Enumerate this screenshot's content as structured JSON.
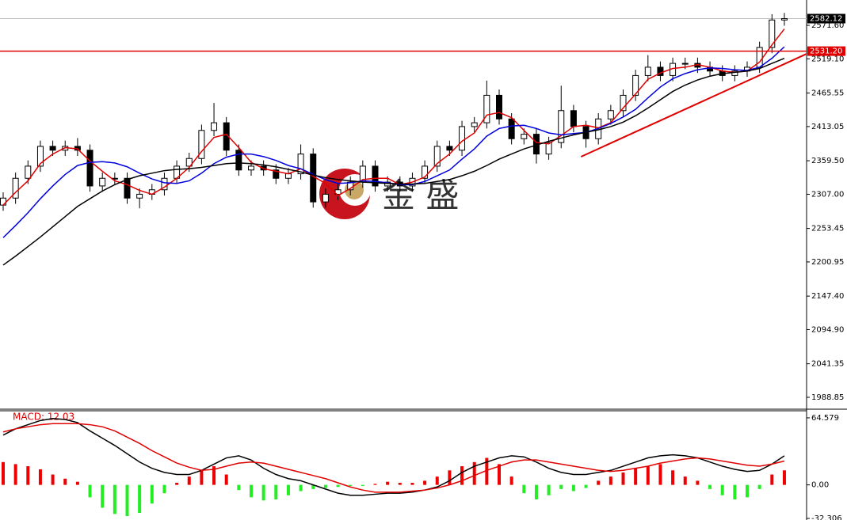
{
  "chart_data": [
    {
      "type": "candlestick",
      "open": [
        2290,
        2301,
        2332,
        2351,
        2382,
        2376,
        2382,
        2376,
        2320,
        2332,
        2332,
        2301,
        2307,
        2314,
        2332,
        2351,
        2363,
        2407,
        2419,
        2376,
        2345,
        2351,
        2345,
        2332,
        2339,
        2370,
        2295,
        2307,
        2314,
        2326,
        2351,
        2320,
        2326,
        2320,
        2332,
        2351,
        2382,
        2376,
        2413,
        2419,
        2462,
        2425,
        2394,
        2401,
        2370,
        2388,
        2438,
        2413,
        2394,
        2425,
        2438,
        2462,
        2493,
        2506,
        2493,
        2512,
        2512,
        2506,
        2500,
        2493,
        2500,
        2506,
        2537,
        2580
      ],
      "high": [
        2310,
        2341,
        2360,
        2391,
        2391,
        2391,
        2395,
        2385,
        2341,
        2341,
        2341,
        2316,
        2323,
        2341,
        2360,
        2372,
        2416,
        2450,
        2428,
        2385,
        2360,
        2360,
        2354,
        2348,
        2385,
        2379,
        2316,
        2323,
        2335,
        2360,
        2360,
        2335,
        2335,
        2341,
        2360,
        2391,
        2391,
        2422,
        2428,
        2485,
        2471,
        2434,
        2410,
        2410,
        2397,
        2477,
        2447,
        2422,
        2434,
        2447,
        2471,
        2502,
        2525,
        2515,
        2521,
        2521,
        2521,
        2515,
        2509,
        2509,
        2515,
        2546,
        2589,
        2591
      ],
      "low": [
        2281,
        2292,
        2323,
        2342,
        2367,
        2367,
        2367,
        2311,
        2311,
        2323,
        2292,
        2285,
        2298,
        2305,
        2323,
        2342,
        2354,
        2398,
        2367,
        2336,
        2336,
        2336,
        2323,
        2323,
        2330,
        2286,
        2286,
        2298,
        2305,
        2317,
        2311,
        2311,
        2311,
        2311,
        2323,
        2342,
        2367,
        2367,
        2404,
        2410,
        2416,
        2385,
        2385,
        2355,
        2361,
        2379,
        2404,
        2380,
        2385,
        2416,
        2429,
        2453,
        2484,
        2484,
        2484,
        2503,
        2497,
        2491,
        2484,
        2484,
        2491,
        2497,
        2528,
        2571
      ],
      "close": [
        2301,
        2332,
        2351,
        2382,
        2376,
        2382,
        2376,
        2320,
        2332,
        2332,
        2301,
        2307,
        2314,
        2332,
        2351,
        2363,
        2407,
        2419,
        2376,
        2345,
        2351,
        2345,
        2332,
        2339,
        2370,
        2295,
        2307,
        2314,
        2326,
        2351,
        2320,
        2326,
        2320,
        2332,
        2351,
        2382,
        2376,
        2413,
        2419,
        2462,
        2425,
        2394,
        2401,
        2370,
        2388,
        2438,
        2413,
        2394,
        2425,
        2438,
        2462,
        2493,
        2506,
        2493,
        2512,
        2512,
        2506,
        2500,
        2493,
        2500,
        2506,
        2537,
        2580,
        2582.12
      ],
      "up_color": "#ffffff",
      "down_color": "#000000",
      "series": [
        {
          "color": "#e00000",
          "values": [
            2290,
            2310,
            2328,
            2355,
            2370,
            2380,
            2378,
            2359,
            2343,
            2328,
            2322,
            2313,
            2307,
            2318,
            2332,
            2349,
            2374,
            2396,
            2401,
            2380,
            2357,
            2347,
            2343,
            2339,
            2347,
            2335,
            2324,
            2305,
            2316,
            2330,
            2332,
            2332,
            2322,
            2326,
            2334,
            2355,
            2370,
            2390,
            2403,
            2431,
            2435,
            2427,
            2407,
            2388,
            2386,
            2399,
            2413,
            2415,
            2411,
            2419,
            2442,
            2464,
            2487,
            2497,
            2504,
            2506,
            2510,
            2506,
            2500,
            2498,
            2500,
            2514,
            2541,
            2566
          ]
        },
        {
          "color": "#0000dd",
          "values": [
            2239,
            2258,
            2278,
            2300,
            2320,
            2338,
            2352,
            2357,
            2358,
            2356,
            2350,
            2340,
            2331,
            2325,
            2324,
            2328,
            2340,
            2355,
            2365,
            2370,
            2370,
            2366,
            2360,
            2352,
            2347,
            2338,
            2330,
            2324,
            2325,
            2328,
            2327,
            2325,
            2322,
            2322,
            2327,
            2336,
            2345,
            2362,
            2378,
            2398,
            2410,
            2414,
            2415,
            2410,
            2403,
            2400,
            2402,
            2404,
            2410,
            2418,
            2428,
            2440,
            2458,
            2475,
            2488,
            2496,
            2502,
            2505,
            2504,
            2502,
            2501,
            2506,
            2520,
            2538
          ]
        },
        {
          "color": "#000000",
          "values": [
            2196,
            2210,
            2225,
            2240,
            2256,
            2272,
            2288,
            2300,
            2312,
            2322,
            2330,
            2336,
            2340,
            2344,
            2346,
            2347,
            2349,
            2352,
            2355,
            2356,
            2355,
            2353,
            2350,
            2346,
            2342,
            2337,
            2333,
            2330,
            2328,
            2326,
            2325,
            2324,
            2323,
            2323,
            2324,
            2327,
            2330,
            2336,
            2343,
            2352,
            2362,
            2370,
            2378,
            2384,
            2390,
            2395,
            2400,
            2404,
            2408,
            2413,
            2420,
            2430,
            2442,
            2455,
            2468,
            2478,
            2486,
            2492,
            2496,
            2498,
            2500,
            2504,
            2512,
            2520
          ]
        }
      ],
      "trendline": {
        "x": [
          46.6,
          64.8
        ],
        "y": [
          2365.8,
          2527
        ],
        "color": "#e00000"
      },
      "hline": {
        "value": 2531.2,
        "label": "2531.20",
        "color": "#e00000"
      },
      "last_price": {
        "value": 2582.12,
        "label": "2582.12"
      },
      "watermark": "金 盛",
      "ylim": [
        1970.25,
        2611.3
      ],
      "yticks": [
        {
          "value": 2571.6,
          "label": "2571.60"
        },
        {
          "value": 2519.1,
          "label": "2519.10"
        },
        2465.55,
        2413.05,
        {
          "value": 2359.5,
          "label": "2359.50"
        },
        {
          "value": 2307,
          "label": "2307.00"
        },
        2253.45,
        2200.95,
        {
          "value": 2147.4,
          "label": "2147.40"
        },
        {
          "value": 2094.9,
          "label": "2094.90"
        },
        2041.35,
        1988.85
      ]
    },
    {
      "type": "macd",
      "label": "MACD: 12.03",
      "histogram": [
        22,
        20,
        18,
        15,
        10,
        6,
        3,
        -12,
        -22,
        -28,
        -30,
        -27,
        -18,
        -8,
        2,
        8,
        14,
        18,
        10,
        -5,
        -12,
        -15,
        -14,
        -10,
        -6,
        -4,
        -3,
        -2,
        -1,
        -1,
        1,
        3,
        2,
        2,
        4,
        8,
        14,
        18,
        22,
        26,
        20,
        8,
        -8,
        -14,
        -10,
        -4,
        -6,
        -3,
        4,
        8,
        12,
        16,
        18,
        20,
        14,
        8,
        4,
        -4,
        -10,
        -14,
        -12,
        -4,
        10,
        14
      ],
      "positive_color": "#ee0000",
      "negative_color": "#22ee22",
      "series": [
        {
          "color": "#000000",
          "values": [
            48,
            54,
            58,
            62,
            64,
            63,
            60,
            52,
            45,
            38,
            30,
            22,
            16,
            12,
            10,
            10,
            14,
            20,
            26,
            28,
            24,
            16,
            10,
            6,
            4,
            0,
            -4,
            -8,
            -10,
            -10,
            -9,
            -8,
            -8,
            -7,
            -5,
            -2,
            4,
            12,
            18,
            22,
            26,
            28,
            27,
            22,
            16,
            12,
            10,
            10,
            12,
            14,
            18,
            22,
            26,
            28,
            29,
            28,
            26,
            22,
            18,
            15,
            13,
            14,
            20,
            28
          ]
        },
        {
          "color": "#e00000",
          "values": [
            51,
            54,
            56,
            58,
            59,
            59,
            59,
            58,
            56,
            52,
            46,
            40,
            33,
            27,
            21,
            17,
            14,
            15,
            18,
            21,
            22,
            21,
            18,
            15,
            12,
            9,
            6,
            2,
            -2,
            -5,
            -7,
            -7,
            -7,
            -6,
            -5,
            -3,
            0,
            4,
            9,
            14,
            18,
            22,
            24,
            24,
            22,
            20,
            18,
            16,
            14,
            13,
            14,
            16,
            18,
            21,
            23,
            25,
            26,
            25,
            23,
            21,
            19,
            18,
            20,
            23
          ]
        }
      ],
      "ylim": [
        -32.306,
        71.4
      ],
      "yticks": [
        64.579,
        {
          "value": 0,
          "label": "0.00"
        },
        -32.306
      ]
    }
  ]
}
